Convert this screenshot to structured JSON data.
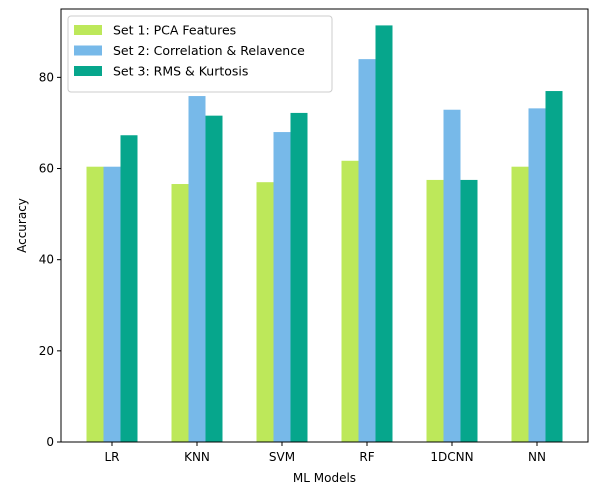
{
  "chart_data": {
    "type": "bar",
    "title": "",
    "xlabel": "ML Models",
    "ylabel": "Accuracy",
    "categories": [
      "LR",
      "KNN",
      "SVM",
      "RF",
      "1DCNN",
      "NN"
    ],
    "ylim": [
      0,
      95
    ],
    "yticks": [
      0,
      20,
      40,
      60,
      80
    ],
    "grid": false,
    "legend_position": "top-left",
    "series": [
      {
        "name": "Set 1: PCA Features",
        "color": "#bde85a",
        "values": [
          60.4,
          56.6,
          57.0,
          61.7,
          57.5,
          60.4
        ]
      },
      {
        "name": "Set 2: Correlation & Relavence",
        "color": "#77b9e9",
        "values": [
          60.4,
          75.9,
          68.0,
          84.0,
          72.9,
          73.2
        ]
      },
      {
        "name": "Set 3: RMS & Kurtosis",
        "color": "#06a68c",
        "values": [
          67.3,
          71.6,
          72.2,
          91.4,
          57.5,
          77.0
        ]
      }
    ]
  }
}
